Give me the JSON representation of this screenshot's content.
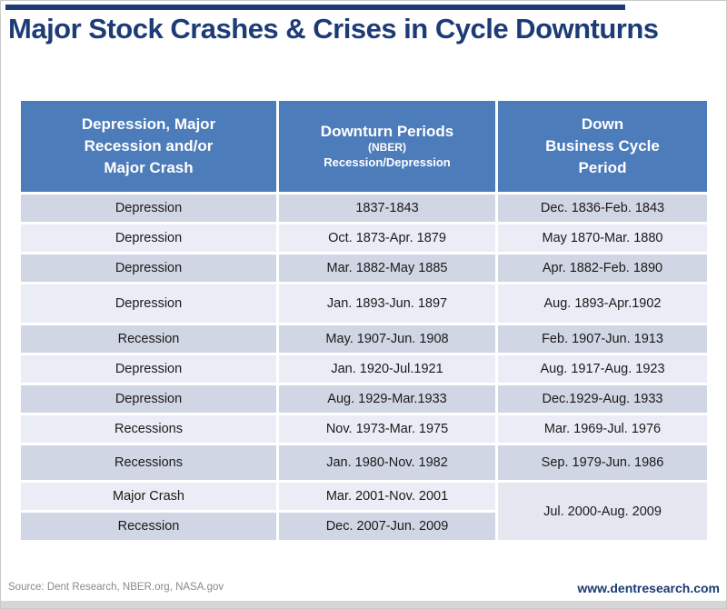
{
  "page": {
    "title": "Major Stock Crashes & Crises in Cycle Downturns"
  },
  "colors": {
    "top_rule": "#1d3b76",
    "title_navy": "#1d3b76",
    "header_blue": "#4d7cba",
    "header_text": "#ffffff",
    "row_dark": "#d1d6e4",
    "row_light": "#eaedf5",
    "merged_cell": "#e4e7f0",
    "body_text": "#1a1a1a",
    "source_gray": "#8a8a8a",
    "website_navy": "#1b3a73",
    "bottom_strip": "#d6d6d6"
  },
  "table": {
    "header": {
      "col1": "Depression, Major\nRecession and/or\nMajor Crash",
      "col2_title": "Downturn Periods",
      "col2_sub1": "(NBER)",
      "col2_sub2": "Recession/Depression",
      "col3": "Down\nBusiness Cycle\nPeriod"
    }
  },
  "footer": {
    "source": "Source: Dent Research, NBER.org, NASA.gov",
    "website": "www.dentresearch.com"
  },
  "chart_data": {
    "type": "table",
    "title": "Major Stock Crashes & Crises in Cycle Downturns",
    "columns": [
      "Depression, Major Recession and/or Major Crash",
      "Downturn Periods (NBER) Recession/Depression",
      "Down Business Cycle Period"
    ],
    "rows": [
      {
        "type": "Depression",
        "downturn": "1837-1843",
        "cycle": "Dec. 1836-Feb. 1843"
      },
      {
        "type": "Depression",
        "downturn": "Oct. 1873-Apr. 1879",
        "cycle": "May 1870-Mar. 1880"
      },
      {
        "type": "Depression",
        "downturn": "Mar. 1882-May 1885",
        "cycle": "Apr. 1882-Feb. 1890"
      },
      {
        "type": "Depression",
        "downturn": "Jan. 1893-Jun. 1897",
        "cycle": "Aug. 1893-Apr.1902"
      },
      {
        "type": "Recession",
        "downturn": "May. 1907-Jun. 1908",
        "cycle": "Feb. 1907-Jun. 1913"
      },
      {
        "type": "Depression",
        "downturn": "Jan. 1920-Jul.1921",
        "cycle": "Aug. 1917-Aug. 1923"
      },
      {
        "type": "Depression",
        "downturn": "Aug. 1929-Mar.1933",
        "cycle": "Dec.1929-Aug. 1933"
      },
      {
        "type": "Recessions",
        "downturn": "Nov. 1973-Mar. 1975",
        "cycle": "Mar. 1969-Jul. 1976"
      },
      {
        "type": "Recessions",
        "downturn": "Jan. 1980-Nov. 1982",
        "cycle": "Sep. 1979-Jun. 1986"
      },
      {
        "type": "Major Crash",
        "downturn": "Mar. 2001-Nov. 2001",
        "cycle": "Jul. 2000-Aug. 2009",
        "cycle_span": 2
      },
      {
        "type": "Recession",
        "downturn": "Dec. 2007-Jun. 2009",
        "cycle": null
      }
    ],
    "notes": "Last column cell 'Jul. 2000-Aug. 2009' is merged across the final two rows."
  }
}
